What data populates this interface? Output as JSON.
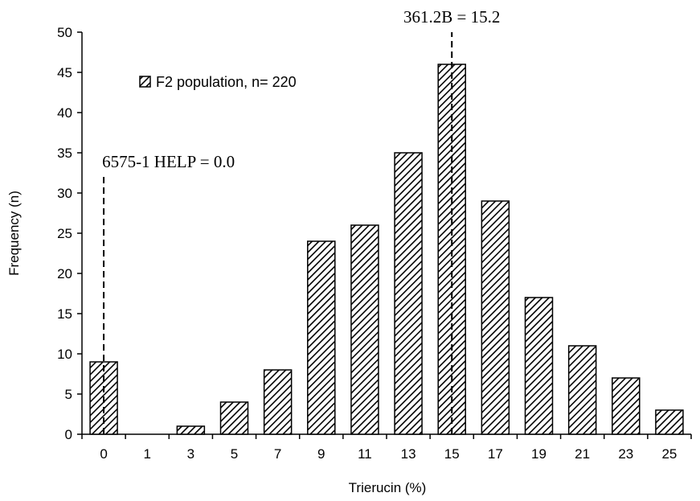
{
  "chart_data": {
    "type": "bar",
    "xlabel": "Trierucin (%)",
    "ylabel": "Frequency (n)",
    "ylim": [
      0,
      50
    ],
    "yticks": [
      0,
      5,
      10,
      15,
      20,
      25,
      30,
      35,
      40,
      45,
      50
    ],
    "categories": [
      "0",
      "1",
      "3",
      "5",
      "7",
      "9",
      "11",
      "13",
      "15",
      "17",
      "19",
      "21",
      "23",
      "25"
    ],
    "series": [
      {
        "name": "F2 population, n= 220",
        "values": [
          9,
          0,
          1,
          4,
          8,
          24,
          26,
          35,
          46,
          29,
          17,
          11,
          7,
          3
        ]
      }
    ],
    "legend_position": "top-left",
    "grid": false,
    "bar_pattern": "diagonal-hatch",
    "annotations": [
      {
        "text": "6575-1 HELP = 0.0",
        "category": "0",
        "style": "dashed-vertical-line",
        "line_to": 32
      },
      {
        "text": "361.2B = 15.2",
        "category": "15",
        "style": "dashed-vertical-line",
        "line_to": 50
      }
    ],
    "colors": {
      "bar_stroke": "#000000",
      "bar_hatch": "#000000",
      "background": "#ffffff"
    }
  }
}
